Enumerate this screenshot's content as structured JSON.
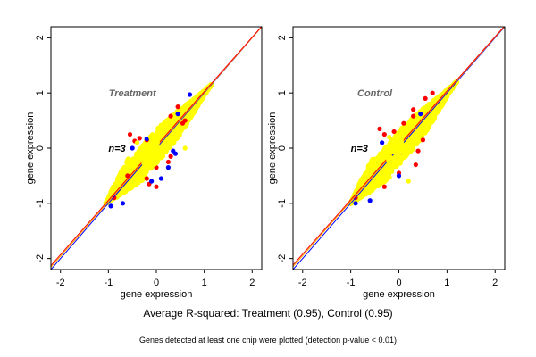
{
  "chart_data": [
    {
      "type": "scatter",
      "panel_title": "Treatment",
      "annotation": "n=3",
      "xlabel": "gene expression",
      "ylabel": "gene expression",
      "xlim": [
        -2.2,
        2.2
      ],
      "ylim": [
        -2.2,
        2.2
      ],
      "xticks": [
        "-2",
        "-1",
        "0",
        "1",
        "2"
      ],
      "yticks": [
        "-2",
        "-1",
        "0",
        "1",
        "2"
      ],
      "cloud": {
        "from": [
          -1.05,
          -1.0
        ],
        "to": [
          1.15,
          1.15
        ],
        "color": "#ffff00"
      },
      "series": [
        {
          "color": "#ff0000",
          "points": [
            [
              -0.55,
              0.25
            ],
            [
              -0.45,
              0.13
            ],
            [
              -0.35,
              0.18
            ],
            [
              -0.2,
              0.15
            ],
            [
              0.3,
              0.58
            ],
            [
              0.45,
              0.75
            ],
            [
              0.6,
              0.5
            ],
            [
              0.55,
              0.45
            ],
            [
              0.3,
              -0.15
            ],
            [
              0.25,
              -0.25
            ],
            [
              -0.2,
              -0.55
            ],
            [
              -0.6,
              -0.5
            ],
            [
              -0.88,
              -0.9
            ],
            [
              0.0,
              -0.35
            ],
            [
              -0.15,
              -0.65
            ],
            [
              0.0,
              -0.7
            ]
          ]
        },
        {
          "color": "#0000ff",
          "points": [
            [
              0.7,
              0.97
            ],
            [
              0.45,
              0.62
            ],
            [
              -0.5,
              0.0
            ],
            [
              -0.2,
              0.17
            ],
            [
              0.0,
              -0.1
            ],
            [
              0.35,
              -0.05
            ],
            [
              0.4,
              -0.1
            ],
            [
              0.25,
              -0.35
            ],
            [
              -0.1,
              -0.6
            ],
            [
              -0.95,
              -1.05
            ],
            [
              -0.7,
              -1.0
            ],
            [
              0.1,
              -0.55
            ]
          ]
        },
        {
          "color": "#ffff00",
          "points": [
            [
              -0.4,
              0.1
            ],
            [
              0.6,
              0.0
            ],
            [
              0.65,
              0.6
            ],
            [
              -0.9,
              -0.7
            ]
          ]
        }
      ],
      "lines": [
        {
          "color": "#0000ff",
          "slope": 1.0,
          "intercept": 0.0
        },
        {
          "color": "#ffa500",
          "slope": 0.99,
          "intercept": 0.02
        },
        {
          "color": "#ff0000",
          "slope": 0.985,
          "intercept": 0.04
        }
      ]
    },
    {
      "type": "scatter",
      "panel_title": "Control",
      "annotation": "n=3",
      "xlabel": "gene expression",
      "ylabel": "gene expression",
      "xlim": [
        -2.2,
        2.2
      ],
      "ylim": [
        -2.2,
        2.2
      ],
      "xticks": [
        "-2",
        "-1",
        "0",
        "1",
        "2"
      ],
      "yticks": [
        "-2",
        "-1",
        "0",
        "1",
        "2"
      ],
      "cloud": {
        "from": [
          -1.0,
          -1.0
        ],
        "to": [
          1.2,
          1.2
        ],
        "color": "#ffff00"
      },
      "series": [
        {
          "color": "#ff0000",
          "points": [
            [
              -0.4,
              0.35
            ],
            [
              -0.3,
              0.25
            ],
            [
              -0.1,
              0.3
            ],
            [
              0.1,
              0.45
            ],
            [
              0.3,
              0.7
            ],
            [
              0.55,
              0.9
            ],
            [
              0.7,
              1.0
            ],
            [
              0.5,
              0.15
            ],
            [
              0.4,
              -0.05
            ],
            [
              0.35,
              -0.3
            ],
            [
              0.0,
              -0.45
            ],
            [
              -0.3,
              -0.7
            ],
            [
              -0.9,
              -0.9
            ],
            [
              0.3,
              0.58
            ]
          ]
        },
        {
          "color": "#0000ff",
          "points": [
            [
              -0.35,
              0.1
            ],
            [
              0.1,
              -0.1
            ],
            [
              -0.9,
              -1.0
            ],
            [
              -0.6,
              -0.95
            ],
            [
              0.45,
              0.62
            ],
            [
              0.0,
              -0.5
            ]
          ]
        },
        {
          "color": "#ffff00",
          "points": [
            [
              -0.2,
              0.2
            ],
            [
              0.7,
              0.5
            ],
            [
              0.2,
              -0.6
            ],
            [
              -0.7,
              -0.7
            ]
          ]
        }
      ],
      "lines": [
        {
          "color": "#0000ff",
          "slope": 1.0,
          "intercept": 0.0
        },
        {
          "color": "#ffa500",
          "slope": 0.99,
          "intercept": 0.03
        },
        {
          "color": "#ff0000",
          "slope": 0.985,
          "intercept": 0.05
        }
      ]
    }
  ],
  "footer": {
    "summary": "Average R-squared: Treatment (0.95), Control (0.95)",
    "note": "Genes detected at least one chip were plotted (detection p-value < 0.01)"
  }
}
